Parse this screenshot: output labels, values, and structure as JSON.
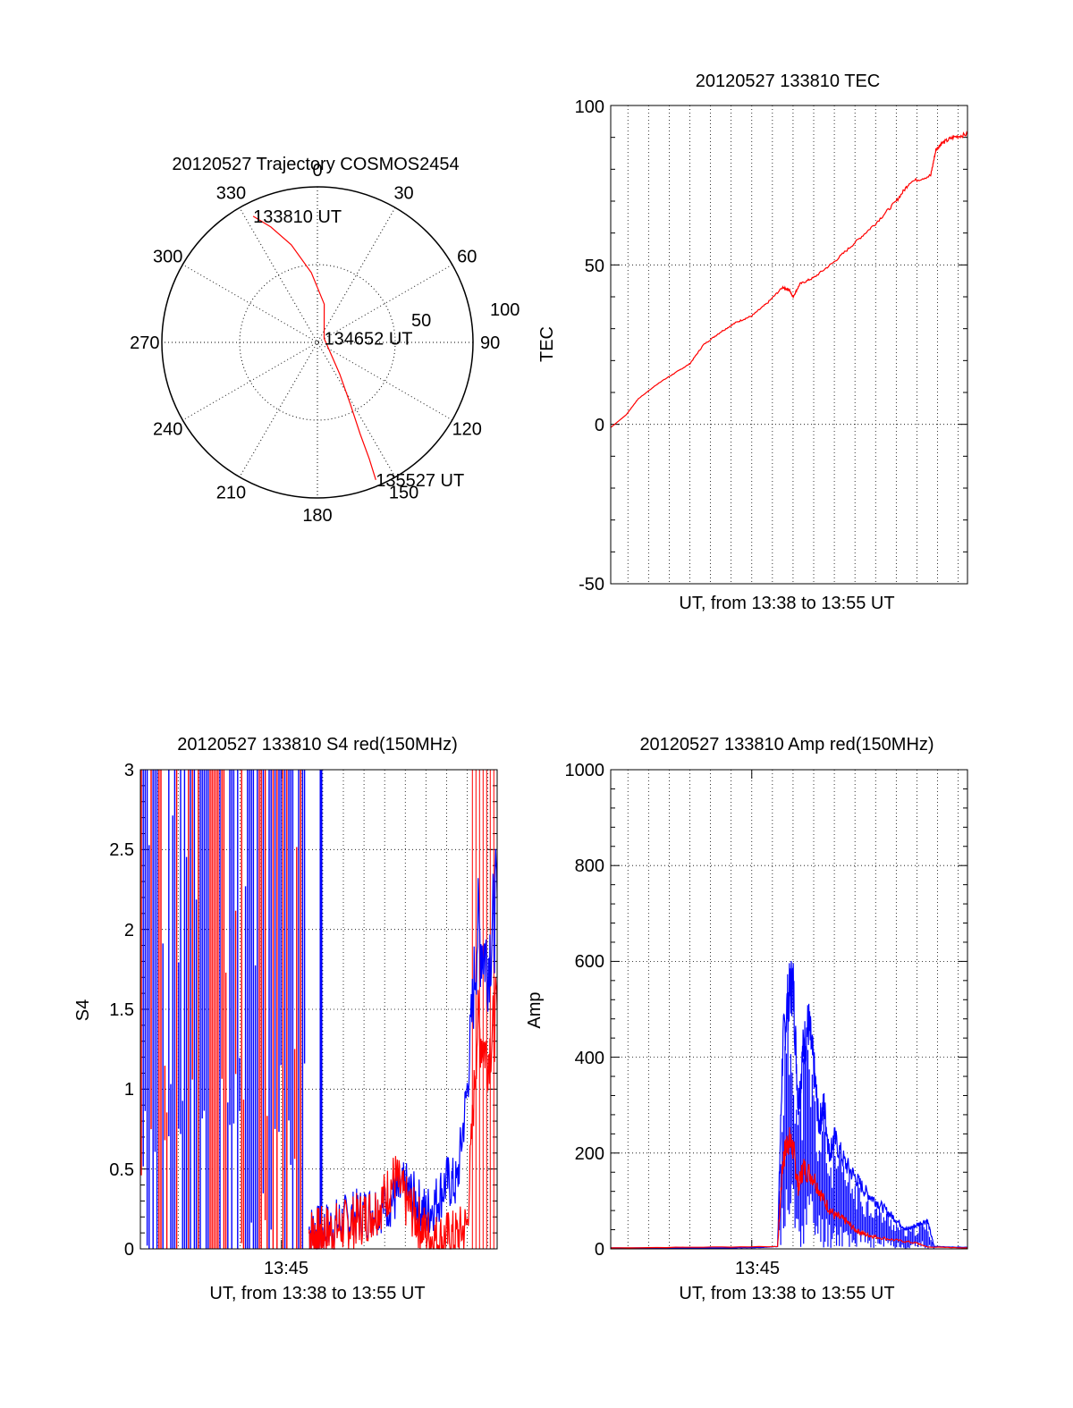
{
  "colors": {
    "red": "#ff0000",
    "blue": "#0000ff",
    "axis": "#000000",
    "grid": "#000000"
  },
  "chart_data": [
    {
      "id": "trajectory",
      "type": "polar",
      "title": "20120527 Trajectory COSMOS2454",
      "angle_labels": [
        "0",
        "30",
        "60",
        "90",
        "120",
        "150",
        "180",
        "210",
        "240",
        "270",
        "300",
        "330"
      ],
      "radius_labels": [
        "50",
        "100"
      ],
      "rlim": [
        0,
        100
      ],
      "grid": true,
      "series": [
        {
          "color": "red",
          "points": [
            [
              333,
              91
            ],
            [
              338,
              80
            ],
            [
              345,
              65
            ],
            [
              355,
              45
            ],
            [
              10,
              25
            ],
            [
              60,
              5
            ],
            [
              145,
              25
            ],
            [
              152,
              45
            ],
            [
              155,
              65
            ],
            [
              156,
              82
            ],
            [
              157,
              96
            ]
          ]
        }
      ],
      "annotations": [
        {
          "text": "133810 UT",
          "az": 333,
          "r": 91
        },
        {
          "text": "134652 UT",
          "az": 60,
          "r": 5
        },
        {
          "text": "135527 UT",
          "az": 157,
          "r": 96
        }
      ]
    },
    {
      "id": "tec",
      "type": "line",
      "title": "20120527 133810 TEC",
      "xlabel": "UT, from 13:38 to 13:55 UT",
      "ylabel": "TEC",
      "xlim": [
        "13:38:10",
        "13:55:27"
      ],
      "ylim": [
        -50,
        100
      ],
      "yticks": [
        "-50",
        "0",
        "50",
        "100"
      ],
      "grid": true,
      "series": [
        {
          "color": "red",
          "x": [
            "13:38:10",
            "13:38:55",
            "13:39:30",
            "13:40:30",
            "13:41:15",
            "13:42:00",
            "13:42:40",
            "13:43:30",
            "13:44:15",
            "13:45:00",
            "13:45:45",
            "13:46:30",
            "13:46:50",
            "13:47:00",
            "13:47:20",
            "13:48:00",
            "13:49:00",
            "13:50:00",
            "13:51:00",
            "13:52:00",
            "13:52:40",
            "13:53:40",
            "13:53:55",
            "13:54:10",
            "13:54:45",
            "13:55:27"
          ],
          "y": [
            -1,
            3,
            8,
            13,
            16,
            19,
            25,
            29,
            32,
            34,
            38,
            43,
            42,
            40,
            44,
            46,
            51,
            57,
            63,
            70,
            76,
            78,
            86,
            88,
            90,
            91
          ]
        }
      ]
    },
    {
      "id": "s4",
      "type": "line",
      "title": "20120527 133810 S4 red(150MHz)",
      "xlabel": "UT, from 13:38 to 13:55 UT",
      "ylabel": "S4",
      "xlim": [
        "13:38:10",
        "13:55:27"
      ],
      "ylim": [
        0,
        3
      ],
      "yticks": [
        "0",
        "0.5",
        "1",
        "1.5",
        "2",
        "2.5",
        "3"
      ],
      "xticks": [
        "13:45"
      ],
      "grid": true,
      "series": [
        {
          "color": "blue",
          "x": [
            "13:46:20",
            "13:46:40",
            "13:47:00",
            "13:47:30",
            "13:48:00",
            "13:48:30",
            "13:49:00",
            "13:49:30",
            "13:50:00",
            "13:50:30",
            "13:51:00",
            "13:51:30",
            "13:52:00",
            "13:52:30",
            "13:53:00",
            "13:53:30",
            "13:54:00",
            "13:54:30",
            "13:55:00",
            "13:55:27"
          ],
          "y": [
            0.12,
            0.1,
            0.12,
            0.14,
            0.17,
            0.2,
            0.22,
            0.25,
            0.28,
            0.32,
            0.38,
            0.3,
            0.22,
            0.3,
            0.42,
            0.4,
            1.0,
            2.0,
            1.8,
            2.2
          ]
        },
        {
          "color": "red",
          "x": [
            "13:46:20",
            "13:46:40",
            "13:47:00",
            "13:47:30",
            "13:48:00",
            "13:48:30",
            "13:49:00",
            "13:49:30",
            "13:50:00",
            "13:50:30",
            "13:51:00",
            "13:51:30",
            "13:52:00",
            "13:52:30",
            "13:53:00",
            "13:53:30",
            "13:54:00",
            "13:54:30",
            "13:55:00",
            "13:55:27"
          ],
          "y": [
            0.1,
            0.09,
            0.1,
            0.12,
            0.14,
            0.17,
            0.2,
            0.24,
            0.32,
            0.45,
            0.3,
            0.2,
            0.1,
            0.06,
            0.07,
            0.08,
            0.15,
            1.4,
            1.2,
            1.5
          ]
        }
      ]
    },
    {
      "id": "amp",
      "type": "line",
      "title": "20120527 133810 Amp red(150MHz)",
      "xlabel": "UT, from 13:38 to 13:55 UT",
      "ylabel": "Amp",
      "xlim": [
        "13:38:10",
        "13:55:27"
      ],
      "ylim": [
        0,
        1000
      ],
      "yticks": [
        "0",
        "200",
        "400",
        "600",
        "800",
        "1000"
      ],
      "xticks": [
        "13:45"
      ],
      "grid": true,
      "series": [
        {
          "color": "blue",
          "x": [
            "13:38:10",
            "13:44:00",
            "13:45:30",
            "13:46:15",
            "13:46:30",
            "13:46:45",
            "13:47:00",
            "13:47:15",
            "13:47:30",
            "13:47:45",
            "13:48:00",
            "13:48:15",
            "13:48:30",
            "13:48:45",
            "13:49:00",
            "13:49:30",
            "13:50:00",
            "13:50:30",
            "13:51:00",
            "13:51:30",
            "13:52:00",
            "13:52:30",
            "13:53:00",
            "13:53:30",
            "13:53:50",
            "13:55:27"
          ],
          "y": [
            2,
            2,
            3,
            5,
            420,
            520,
            560,
            300,
            420,
            470,
            380,
            260,
            300,
            200,
            230,
            180,
            150,
            120,
            100,
            80,
            60,
            40,
            50,
            60,
            5,
            3
          ]
        },
        {
          "color": "red",
          "x": [
            "13:38:10",
            "13:46:15",
            "13:46:30",
            "13:46:45",
            "13:47:00",
            "13:47:15",
            "13:47:30",
            "13:48:00",
            "13:48:30",
            "13:49:00",
            "13:49:30",
            "13:50:00",
            "13:50:30",
            "13:51:00",
            "13:52:00",
            "13:53:00",
            "13:53:30",
            "13:55:27"
          ],
          "y": [
            2,
            5,
            180,
            230,
            210,
            130,
            170,
            150,
            100,
            70,
            60,
            40,
            30,
            25,
            18,
            12,
            4,
            2
          ]
        }
      ]
    }
  ]
}
